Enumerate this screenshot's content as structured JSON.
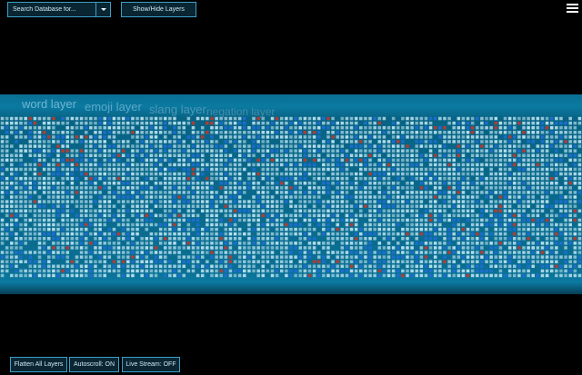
{
  "search": {
    "placeholder": "Search Database for..."
  },
  "toolbar": {
    "layers_label": "Show/Hide Layers"
  },
  "menu": {
    "icon": "hamburger-menu-icon"
  },
  "layers": [
    "word layer",
    "emoji layer",
    "slang layer",
    "negation layer"
  ],
  "bottom": {
    "flatten_label": "Flatten All Layers",
    "autoscroll_label": "Autoscroll: ON",
    "stream_label": "Live Stream: OFF"
  },
  "colors": {
    "background": "#000000",
    "band": "#0a6f93",
    "cell_light": "#bfe6f2",
    "cell_blue": "#1d6fd4",
    "cell_red": "#c0392b",
    "button_border": "#3aa0c8"
  }
}
